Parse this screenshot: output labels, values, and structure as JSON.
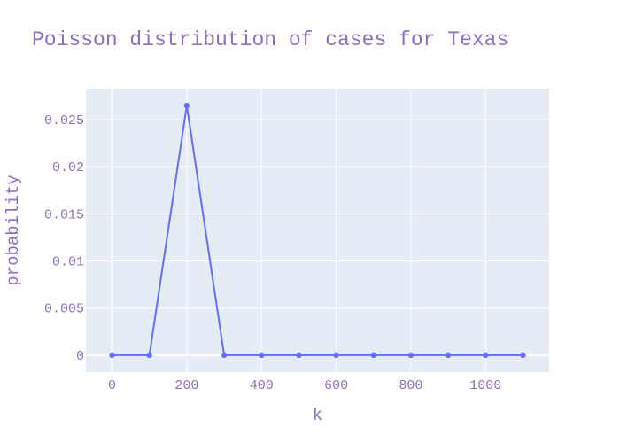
{
  "chart_data": {
    "type": "line",
    "title": "Poisson distribution of cases for Texas",
    "xlabel": "k",
    "ylabel": "probability",
    "x": [
      0,
      100,
      200,
      300,
      400,
      500,
      600,
      700,
      800,
      900,
      1000,
      1100
    ],
    "series": [
      {
        "values": [
          0,
          0,
          0.0265,
          0,
          0,
          0,
          0,
          0,
          0,
          0,
          0,
          0
        ],
        "color": "#636efa"
      }
    ],
    "xlim": [
      -70,
      1170
    ],
    "ylim": [
      -0.0018,
      0.0283
    ],
    "xticks": [
      0,
      200,
      400,
      600,
      800,
      1000
    ],
    "xtick_labels": [
      "0",
      "200",
      "400",
      "600",
      "800",
      "1000"
    ],
    "yticks": [
      0,
      0.005,
      0.01,
      0.015,
      0.02,
      0.025
    ],
    "ytick_labels": [
      "0",
      "0.005",
      "0.01",
      "0.015",
      "0.02",
      "0.025"
    ],
    "grid": true,
    "plot_bgcolor": "#e5ecf6",
    "gridcolor": "#ffffff",
    "text_color": "#8e6fbf"
  }
}
